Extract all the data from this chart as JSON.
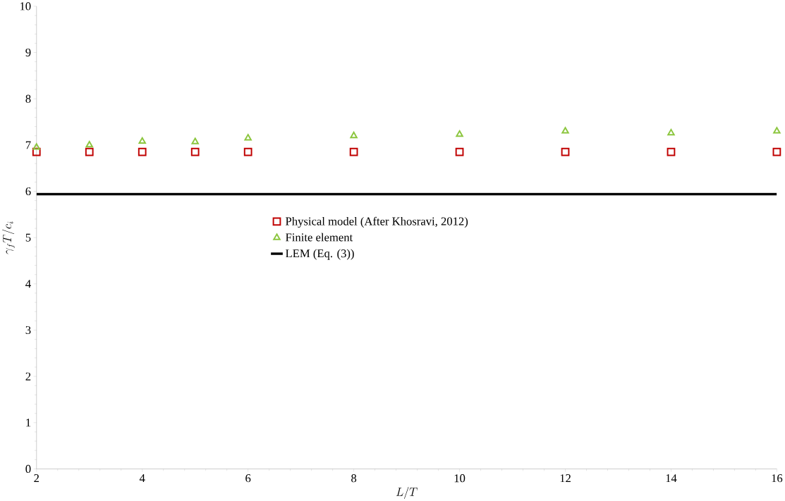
{
  "chart_data": {
    "type": "scatter",
    "xlabel": "L/T",
    "ylabel": "\\gamma_f T/c_i",
    "xlim": [
      2,
      16
    ],
    "ylim": [
      0,
      10
    ],
    "xticks": [
      2,
      4,
      6,
      8,
      10,
      12,
      14,
      16
    ],
    "yticks": [
      0,
      1,
      2,
      3,
      4,
      5,
      6,
      7,
      8,
      9,
      10
    ],
    "grid": false,
    "legend": "center",
    "series": [
      {
        "name": "Physical model (After Khosravi, 2012)",
        "color": "#c00000",
        "marker": "square",
        "x": [
          2,
          3,
          4,
          5,
          6,
          8,
          10,
          12,
          14,
          16
        ],
        "values": [
          6.85,
          6.85,
          6.85,
          6.85,
          6.85,
          6.85,
          6.85,
          6.85,
          6.85,
          6.85
        ]
      },
      {
        "name": "Finite element",
        "color": "#8cc63f",
        "marker": "triangle",
        "x": [
          2,
          3,
          4,
          5,
          6,
          8,
          10,
          12,
          14,
          16
        ],
        "values": [
          6.95,
          7.0,
          7.08,
          7.07,
          7.15,
          7.2,
          7.23,
          7.3,
          7.26,
          7.3
        ]
      },
      {
        "name": "LEM (Eq. (3))",
        "type": "line",
        "color": "#000000",
        "marker": "none",
        "line_style": "solid",
        "x": [
          2,
          16
        ],
        "values": [
          5.94,
          5.94
        ]
      }
    ]
  }
}
